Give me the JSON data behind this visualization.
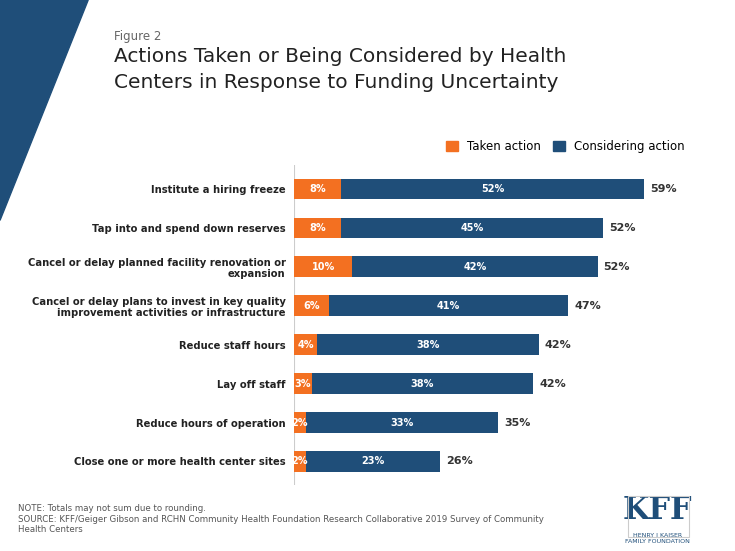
{
  "categories": [
    "Institute a hiring freeze",
    "Tap into and spend down reserves",
    "Cancel or delay planned facility renovation or\nexpansion",
    "Cancel or delay plans to invest in key quality\nimprovement activities or infrastructure",
    "Reduce staff hours",
    "Lay off staff",
    "Reduce hours of operation",
    "Close one or more health center sites"
  ],
  "taken_values": [
    8,
    8,
    10,
    6,
    4,
    3,
    2,
    2
  ],
  "considering_values": [
    52,
    45,
    42,
    41,
    38,
    38,
    33,
    23
  ],
  "total_labels": [
    "59%",
    "52%",
    "52%",
    "47%",
    "42%",
    "42%",
    "35%",
    "26%"
  ],
  "taken_color": "#f37021",
  "considering_color": "#1f4e79",
  "background_color": "#ffffff",
  "title_line1": "Actions Taken or Being Considered by Health",
  "title_line2": "Centers in Response to Funding Uncertainty",
  "figure_label": "Figure 2",
  "legend_taken": "Taken action",
  "legend_considering": "Considering action",
  "note_text": "NOTE: Totals may not sum due to rounding.\nSOURCE: KFF/Geiger Gibson and RCHN Community Health Foundation Research Collaborative 2019 Survey of Community\nHealth Centers",
  "bar_height": 0.52,
  "xlim": [
    0,
    68
  ]
}
